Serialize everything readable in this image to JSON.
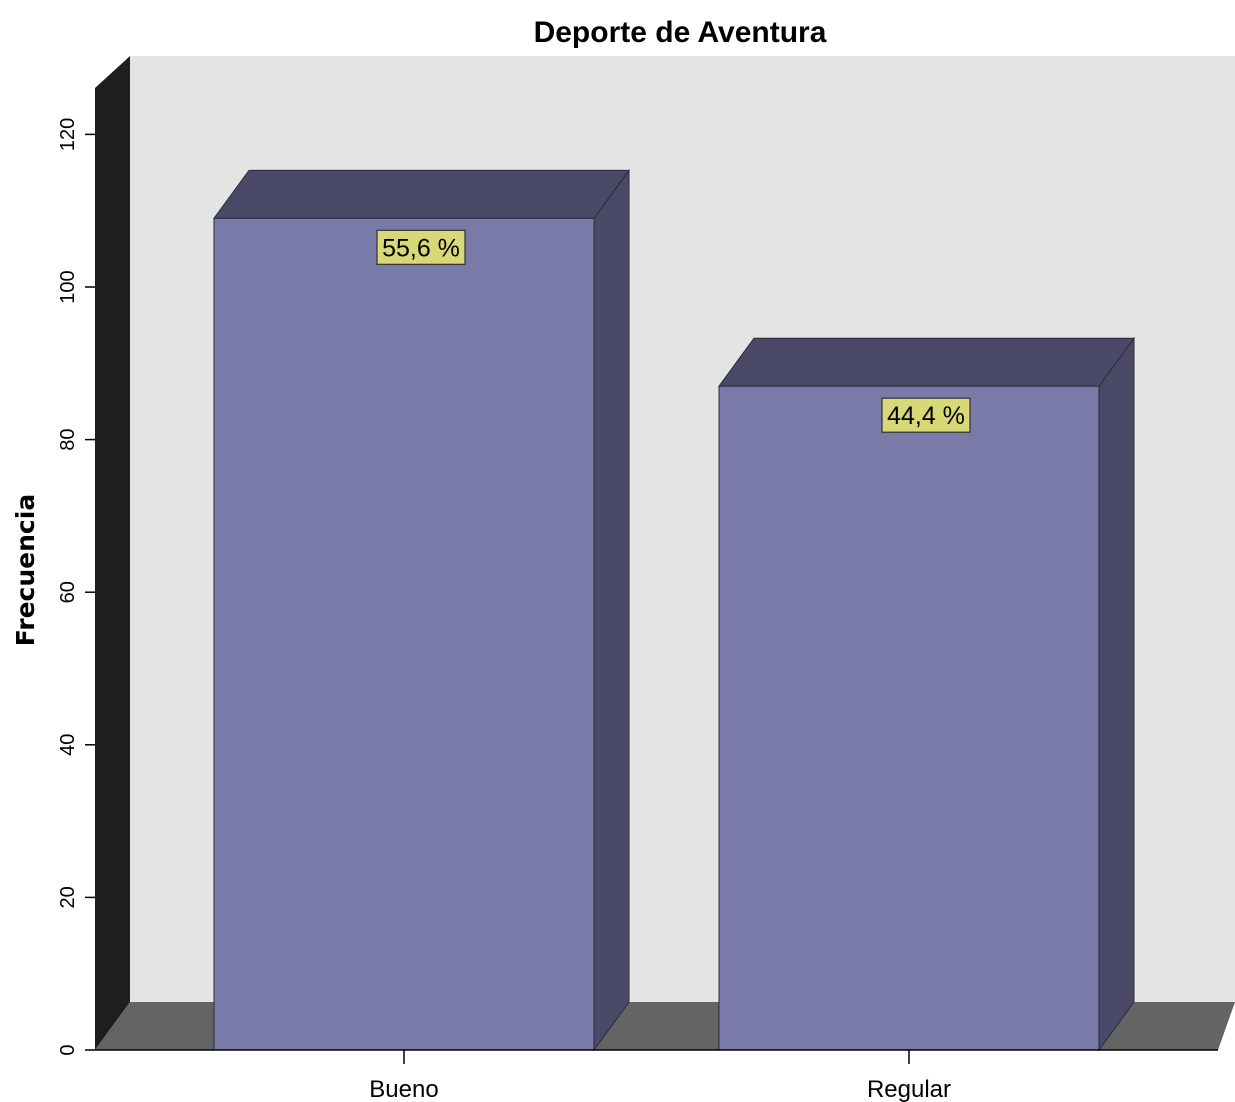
{
  "chart_data": {
    "type": "bar",
    "title": "Deporte de Aventura",
    "xlabel": "",
    "ylabel": "Frecuencia",
    "categories": [
      "Bueno",
      "Regular"
    ],
    "values": [
      109,
      87
    ],
    "data_labels": [
      "55,6 %",
      "44,4 %"
    ],
    "ylim": [
      0,
      120
    ],
    "yticks": [
      "0",
      "20",
      "40",
      "60",
      "80",
      "100",
      "120"
    ],
    "style": "3d",
    "grid": false,
    "legend": "none",
    "colors": {
      "bar_front": "#7A7AA8",
      "bar_side": "#4A4A68",
      "bar_top": "#4A4A68",
      "plot_background": "#E4E4E4",
      "back_wall_left": "#1E1E1E",
      "floor": "#646464",
      "data_label_background": "#D8D877"
    }
  }
}
